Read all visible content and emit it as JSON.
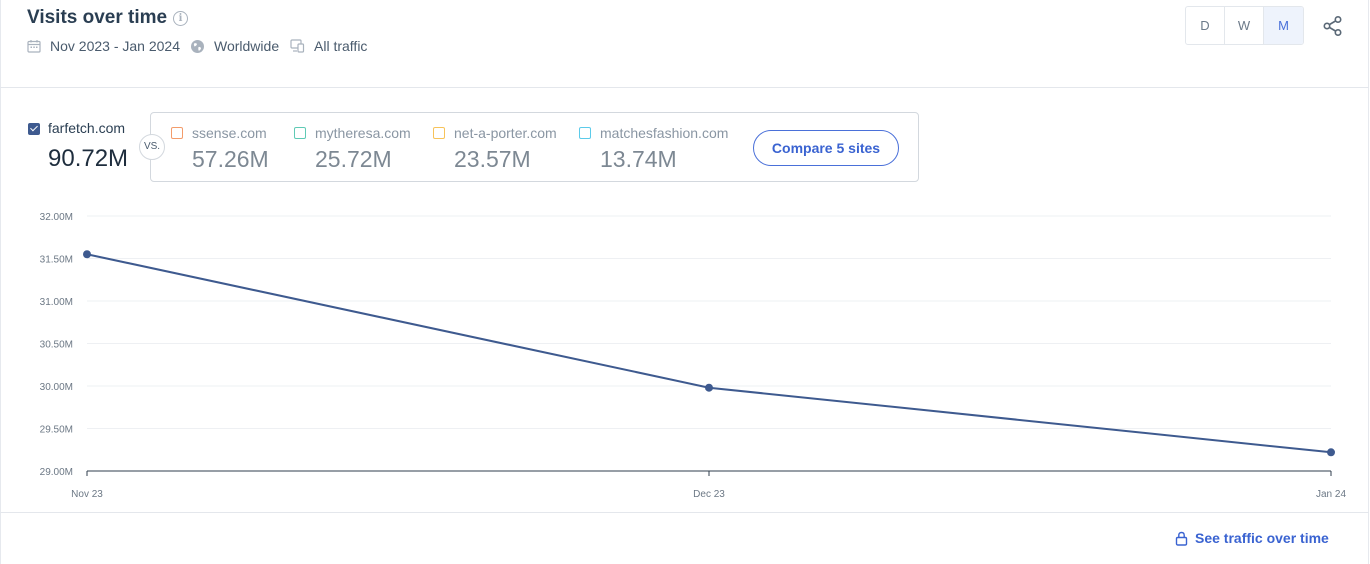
{
  "header": {
    "title": "Visits over time",
    "date_range": "Nov 2023 - Jan 2024",
    "region": "Worldwide",
    "traffic": "All traffic",
    "granularity": {
      "options": [
        "D",
        "W",
        "M"
      ],
      "selected": "M"
    }
  },
  "main_site": {
    "name": "farfetch.com",
    "value": "90.72M",
    "checked": true,
    "color": "#3e5a8f"
  },
  "vs_label": "VS.",
  "competitors": [
    {
      "name": "ssense.com",
      "value": "57.26M",
      "color": "#f39c6b",
      "checked": false
    },
    {
      "name": "mytheresa.com",
      "value": "25.72M",
      "color": "#5fcab5",
      "checked": false
    },
    {
      "name": "net-a-porter.com",
      "value": "23.57M",
      "color": "#f7c35a",
      "checked": false
    },
    {
      "name": "matchesfashion.com",
      "value": "13.74M",
      "color": "#5ccbea",
      "checked": false
    }
  ],
  "compare_button": "Compare 5 sites",
  "footer_link": "See traffic over time",
  "chart_data": {
    "type": "line",
    "x": [
      "Nov 23",
      "Dec 23",
      "Jan 24"
    ],
    "series": [
      {
        "name": "farfetch.com",
        "values": [
          31.55,
          29.98,
          29.22
        ],
        "color": "#3e5a8f"
      }
    ],
    "ylim": [
      29.0,
      32.0
    ],
    "y_ticks": [
      "29.00M",
      "29.50M",
      "30.00M",
      "30.50M",
      "31.00M",
      "31.50M",
      "32.00M"
    ],
    "y_tick_values": [
      29.0,
      29.5,
      30.0,
      30.5,
      31.0,
      31.5,
      32.0
    ],
    "grid": true,
    "legend": "none"
  }
}
